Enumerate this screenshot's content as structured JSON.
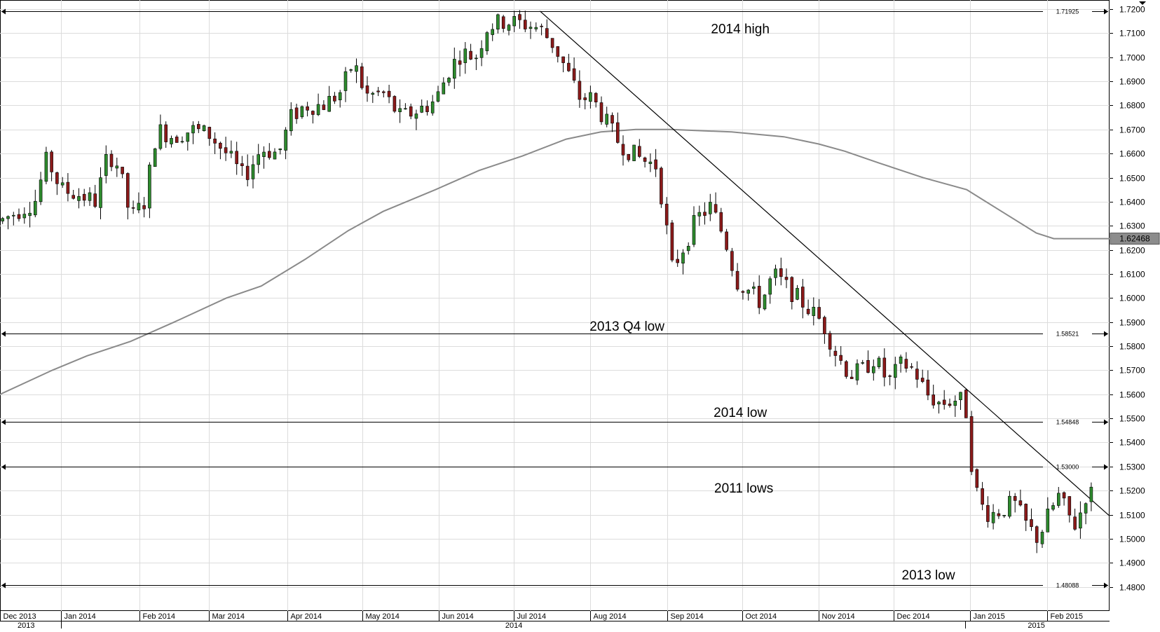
{
  "chart_data": {
    "type": "candlestick",
    "instrument": "GBP/USD",
    "y_axis": {
      "min": 1.47,
      "max": 1.7238,
      "ticks": [
        "1.4800",
        "1.4900",
        "1.5000",
        "1.5100",
        "1.5200",
        "1.5300",
        "1.5400",
        "1.5500",
        "1.5600",
        "1.5700",
        "1.5800",
        "1.5900",
        "1.6000",
        "1.6100",
        "1.6200",
        "1.6300",
        "1.6400",
        "1.6500",
        "1.6600",
        "1.6700",
        "1.6800",
        "1.6900",
        "1.7000",
        "1.7100",
        "1.7200"
      ],
      "current_price_label": "1.62468",
      "current_price": 1.62468
    },
    "x_axis": {
      "months": [
        {
          "label": "Dec 2013",
          "week": 0
        },
        {
          "label": "Jan 2014",
          "week": 3.5
        },
        {
          "label": "Feb 2014",
          "week": 8
        },
        {
          "label": "Mar 2014",
          "week": 12
        },
        {
          "label": "Apr 2014",
          "week": 16.5
        },
        {
          "label": "May 2014",
          "week": 20.8
        },
        {
          "label": "Jun 2014",
          "week": 25.2
        },
        {
          "label": "Jul 2014",
          "week": 29.5
        },
        {
          "label": "Aug 2014",
          "week": 33.9
        },
        {
          "label": "Sep 2014",
          "week": 38.3
        },
        {
          "label": "Oct 2014",
          "week": 42.6
        },
        {
          "label": "Nov 2014",
          "week": 47
        },
        {
          "label": "Dec 2014",
          "week": 51.3
        },
        {
          "label": "Jan 2015",
          "week": 55.7
        },
        {
          "label": "Feb 2015",
          "week": 60.1
        }
      ],
      "years": [
        {
          "label": "2013",
          "week": 1.5
        },
        {
          "label": "2014",
          "week": 29.5
        },
        {
          "label": "2015",
          "week": 59.5
        }
      ],
      "total_weeks": 63.7
    },
    "levels": [
      {
        "name": "2014 high",
        "value": 1.71925,
        "label": "1.71925",
        "annotation_week": 42.5
      },
      {
        "name": "2013 Q4 low",
        "value": 1.58521,
        "label": "1.58521",
        "annotation_week": 36
      },
      {
        "name": "2014 low",
        "value": 1.54848,
        "label": "1.54848",
        "annotation_week": 42.5
      },
      {
        "name": "2011 lows",
        "value": 1.53,
        "label": "1.53000",
        "annotation_week": 42.7
      },
      {
        "name": "2013 low",
        "value": 1.48088,
        "label": "1.48088",
        "annotation_week": 53.3
      }
    ],
    "annotations": [
      {
        "text": "2014 high",
        "y": 1.7117
      },
      {
        "text": "2013 Q4 low",
        "y": 1.5881
      },
      {
        "text": "2014 low",
        "y": 1.5523
      },
      {
        "text": "2011 lows",
        "y": 1.5209
      },
      {
        "text": "2013 low",
        "y": 1.4848
      }
    ],
    "trendline": [
      {
        "week": 31.0,
        "y": 1.7192
      },
      {
        "week": 63.7,
        "y": 1.5095
      }
    ],
    "moving_average": [
      {
        "week": 0,
        "y": 1.56
      },
      {
        "week": 3,
        "y": 1.57
      },
      {
        "week": 5,
        "y": 1.576
      },
      {
        "week": 7.5,
        "y": 1.582
      },
      {
        "week": 10,
        "y": 1.59
      },
      {
        "week": 13,
        "y": 1.6
      },
      {
        "week": 15,
        "y": 1.605
      },
      {
        "week": 17.5,
        "y": 1.616
      },
      {
        "week": 20,
        "y": 1.628
      },
      {
        "week": 22,
        "y": 1.636
      },
      {
        "week": 25,
        "y": 1.645
      },
      {
        "week": 27.5,
        "y": 1.653
      },
      {
        "week": 30,
        "y": 1.659
      },
      {
        "week": 32.5,
        "y": 1.666
      },
      {
        "week": 34.5,
        "y": 1.669
      },
      {
        "week": 36.5,
        "y": 1.67
      },
      {
        "week": 38.5,
        "y": 1.67
      },
      {
        "week": 42,
        "y": 1.669
      },
      {
        "week": 45,
        "y": 1.667
      },
      {
        "week": 47,
        "y": 1.664
      },
      {
        "week": 48.5,
        "y": 1.661
      },
      {
        "week": 50.5,
        "y": 1.656
      },
      {
        "week": 53,
        "y": 1.65
      },
      {
        "week": 55.5,
        "y": 1.645
      },
      {
        "week": 57.5,
        "y": 1.636
      },
      {
        "week": 59.5,
        "y": 1.627
      },
      {
        "week": 60.5,
        "y": 1.62468
      },
      {
        "week": 63.7,
        "y": 1.62468
      }
    ],
    "price_path": [
      {
        "week": 0,
        "y": 1.632
      },
      {
        "week": 1,
        "y": 1.636
      },
      {
        "week": 2,
        "y": 1.64
      },
      {
        "week": 2.7,
        "y": 1.658
      },
      {
        "week": 3.5,
        "y": 1.645
      },
      {
        "week": 4.5,
        "y": 1.643
      },
      {
        "week": 5.5,
        "y": 1.64
      },
      {
        "week": 6.2,
        "y": 1.66
      },
      {
        "week": 6.8,
        "y": 1.655
      },
      {
        "week": 7.5,
        "y": 1.633
      },
      {
        "week": 8.3,
        "y": 1.64
      },
      {
        "week": 9,
        "y": 1.67
      },
      {
        "week": 10,
        "y": 1.667
      },
      {
        "week": 11,
        "y": 1.67
      },
      {
        "week": 12,
        "y": 1.668
      },
      {
        "week": 13,
        "y": 1.66
      },
      {
        "week": 14,
        "y": 1.65
      },
      {
        "week": 15,
        "y": 1.662
      },
      {
        "week": 16,
        "y": 1.66
      },
      {
        "week": 16.7,
        "y": 1.675
      },
      {
        "week": 17.5,
        "y": 1.68
      },
      {
        "week": 18.5,
        "y": 1.68
      },
      {
        "week": 19.5,
        "y": 1.685
      },
      {
        "week": 20.3,
        "y": 1.698
      },
      {
        "week": 21,
        "y": 1.684
      },
      {
        "week": 22,
        "y": 1.685
      },
      {
        "week": 23,
        "y": 1.675
      },
      {
        "week": 24,
        "y": 1.678
      },
      {
        "week": 25,
        "y": 1.682
      },
      {
        "week": 25.8,
        "y": 1.695
      },
      {
        "week": 26.5,
        "y": 1.702
      },
      {
        "week": 27.3,
        "y": 1.7
      },
      {
        "week": 28,
        "y": 1.713
      },
      {
        "week": 29,
        "y": 1.715
      },
      {
        "week": 30,
        "y": 1.714
      },
      {
        "week": 31,
        "y": 1.712
      },
      {
        "week": 31.8,
        "y": 1.705
      },
      {
        "week": 32.5,
        "y": 1.695
      },
      {
        "week": 33.3,
        "y": 1.683
      },
      {
        "week": 34,
        "y": 1.683
      },
      {
        "week": 34.8,
        "y": 1.673
      },
      {
        "week": 35.5,
        "y": 1.665
      },
      {
        "week": 36.3,
        "y": 1.66
      },
      {
        "week": 37,
        "y": 1.657
      },
      {
        "week": 37.7,
        "y": 1.655
      },
      {
        "week": 38.2,
        "y": 1.632
      },
      {
        "week": 38.6,
        "y": 1.612
      },
      {
        "week": 39.3,
        "y": 1.622
      },
      {
        "week": 40,
        "y": 1.633
      },
      {
        "week": 40.8,
        "y": 1.638
      },
      {
        "week": 41.6,
        "y": 1.625
      },
      {
        "week": 42.3,
        "y": 1.607
      },
      {
        "week": 43,
        "y": 1.603
      },
      {
        "week": 43.7,
        "y": 1.598
      },
      {
        "week": 44.4,
        "y": 1.61
      },
      {
        "week": 45.1,
        "y": 1.605
      },
      {
        "week": 45.8,
        "y": 1.6
      },
      {
        "week": 46.5,
        "y": 1.595
      },
      {
        "week": 47.2,
        "y": 1.59
      },
      {
        "week": 48,
        "y": 1.577
      },
      {
        "week": 48.8,
        "y": 1.568
      },
      {
        "week": 49.5,
        "y": 1.57
      },
      {
        "week": 50.2,
        "y": 1.575
      },
      {
        "week": 51,
        "y": 1.565
      },
      {
        "week": 51.8,
        "y": 1.573
      },
      {
        "week": 52.5,
        "y": 1.57
      },
      {
        "week": 53.2,
        "y": 1.56
      },
      {
        "week": 54,
        "y": 1.556
      },
      {
        "week": 54.8,
        "y": 1.558
      },
      {
        "week": 55.4,
        "y": 1.557
      },
      {
        "week": 55.8,
        "y": 1.53
      },
      {
        "week": 56.2,
        "y": 1.515
      },
      {
        "week": 56.8,
        "y": 1.51
      },
      {
        "week": 57.5,
        "y": 1.512
      },
      {
        "week": 58.2,
        "y": 1.515
      },
      {
        "week": 59,
        "y": 1.505
      },
      {
        "week": 59.6,
        "y": 1.5
      },
      {
        "week": 60.2,
        "y": 1.51
      },
      {
        "week": 60.8,
        "y": 1.518
      },
      {
        "week": 61.3,
        "y": 1.51
      },
      {
        "week": 61.8,
        "y": 1.505
      },
      {
        "week": 62.3,
        "y": 1.518
      },
      {
        "week": 62.7,
        "y": 1.519
      }
    ]
  }
}
